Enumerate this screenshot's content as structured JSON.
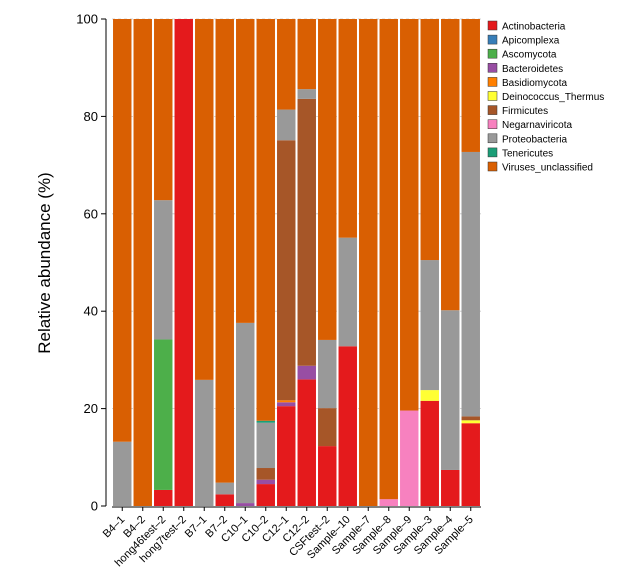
{
  "chart_data": {
    "type": "bar",
    "stacked": true,
    "title": "",
    "xlabel": "",
    "ylabel": "Relative abundance (%)",
    "ylim": [
      0,
      100
    ],
    "yticks": [
      0,
      20,
      40,
      60,
      80,
      100
    ],
    "grid": "horizontal dashed",
    "legend_position": "right",
    "categories": [
      "B4–1",
      "B4–2",
      "hong46test–2",
      "hong7test–2",
      "B7–1",
      "B7–2",
      "C10–1",
      "C10–2",
      "C12–1",
      "C12–2",
      "CSFtest–2",
      "Sample–10",
      "Sample–7",
      "Sample–8",
      "Sample–9",
      "Sample–3",
      "Sample–4",
      "Sample–5"
    ],
    "series": [
      {
        "name": "Actinobacteria",
        "color": "#e41a1c",
        "values": [
          0,
          0,
          3.3,
          100,
          0,
          2.4,
          0,
          4.5,
          20.5,
          26,
          12.3,
          32.8,
          0,
          0,
          0,
          21.6,
          7.4,
          17
        ]
      },
      {
        "name": "Apicomplexa",
        "color": "#377eb8",
        "values": [
          0,
          0,
          0,
          0,
          0,
          0,
          0,
          0,
          0,
          0,
          0,
          0,
          0,
          0,
          0,
          0,
          0,
          0
        ]
      },
      {
        "name": "Ascomycota",
        "color": "#4daf4a",
        "values": [
          0,
          0,
          30.9,
          0,
          0,
          0,
          0,
          0,
          0,
          0,
          0,
          0,
          0,
          0,
          0,
          0,
          0,
          0
        ]
      },
      {
        "name": "Bacteroidetes",
        "color": "#984ea3",
        "values": [
          0,
          0,
          0,
          0,
          0,
          0,
          0.6,
          0.9,
          0.8,
          2.8,
          0,
          0,
          0,
          0,
          0,
          0,
          0,
          0
        ]
      },
      {
        "name": "Basidiomycota",
        "color": "#ff7f00",
        "values": [
          0,
          0,
          0,
          0,
          0,
          0,
          0,
          0,
          0.4,
          0,
          0,
          0,
          0,
          0,
          0,
          0,
          0,
          0
        ]
      },
      {
        "name": "Deinococcus_Thermus",
        "color": "#ffff33",
        "values": [
          0,
          0,
          0,
          0,
          0,
          0,
          0,
          0,
          0,
          0,
          0,
          0,
          0,
          0,
          0,
          2.2,
          0,
          0.6
        ]
      },
      {
        "name": "Firmicutes",
        "color": "#a65628",
        "values": [
          0,
          0,
          0,
          0,
          0,
          0,
          0,
          2.4,
          53.4,
          54.8,
          7.8,
          0,
          0,
          0,
          0,
          0,
          0,
          0.8
        ]
      },
      {
        "name": "Negarnaviricota",
        "color": "#f781bf",
        "values": [
          0,
          0,
          0,
          0,
          0,
          0,
          0,
          0,
          0,
          0,
          0,
          0,
          0,
          1.4,
          19.6,
          0,
          0,
          0
        ]
      },
      {
        "name": "Proteobacteria",
        "color": "#999999",
        "values": [
          13.2,
          0,
          28.6,
          0,
          25.9,
          2.4,
          37,
          9.3,
          6.3,
          2,
          14,
          22.3,
          0,
          0,
          0,
          26.7,
          32.8,
          54.3
        ]
      },
      {
        "name": "Tenericutes",
        "color": "#1b9e77",
        "values": [
          0,
          0,
          0,
          0,
          0,
          0,
          0,
          0.4,
          0,
          0,
          0,
          0,
          0,
          0,
          0,
          0,
          0,
          0
        ]
      },
      {
        "name": "Viruses_unclassified",
        "color": "#d95f02",
        "values": [
          86.8,
          100,
          37.2,
          0,
          74.1,
          95.2,
          62.4,
          82.5,
          18.6,
          14.4,
          65.9,
          44.9,
          100,
          98.6,
          80.4,
          49.5,
          59.8,
          27.3
        ]
      }
    ]
  }
}
